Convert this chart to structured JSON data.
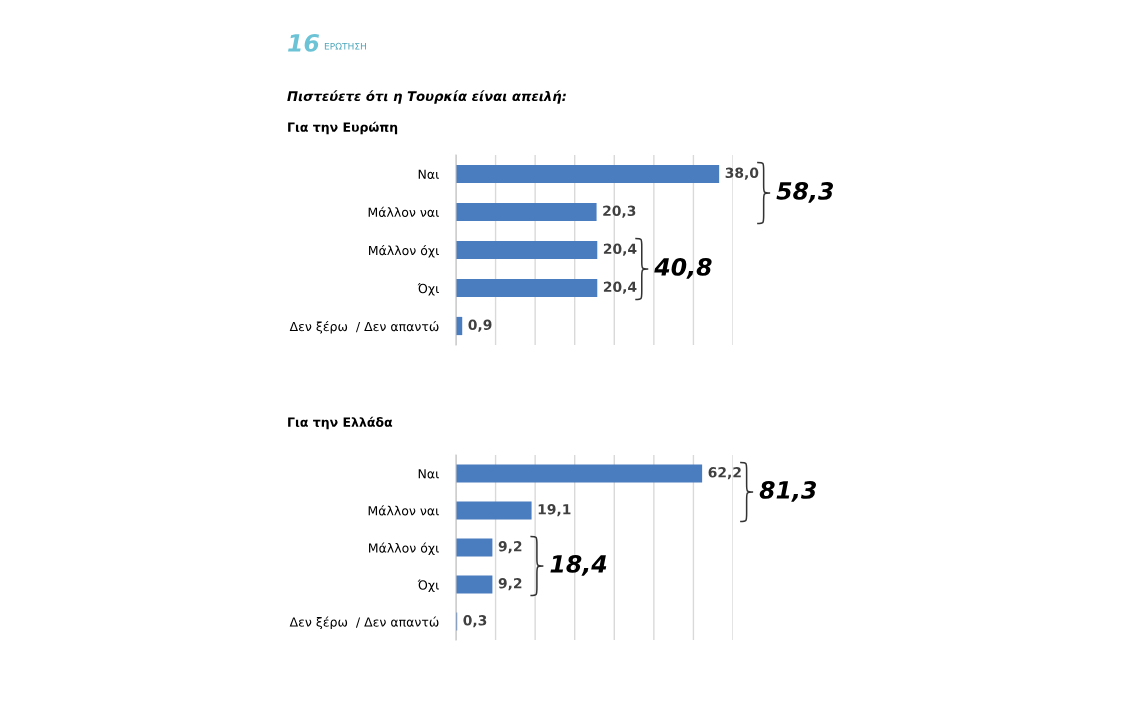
{
  "chart_data": [
    {
      "type": "bar",
      "orientation": "horizontal",
      "title": "Πιστεύετε ότι η Τουρκία είναι απειλή:",
      "subtitle": "Για την Ευρώπη",
      "categories": [
        "Ναι",
        "Μάλλον ναι",
        "Μάλλον όχι",
        "Όχι",
        "Δεν ξέρω  / Δεν απαντώ"
      ],
      "values": [
        38.0,
        20.3,
        20.4,
        20.4,
        0.9
      ],
      "value_labels": [
        "38,0",
        "20,3",
        "20,4",
        "20,4",
        "0,9"
      ],
      "color": "#4a7cc0",
      "xlim": [
        0,
        40
      ],
      "xticks": [
        {
          "value": 0,
          "label": null
        },
        {
          "value": 5.714,
          "label": null
        },
        {
          "value": 11.429,
          "label": null
        },
        {
          "value": 17.143,
          "label": null
        },
        {
          "value": 22.857,
          "label": null
        },
        {
          "value": 28.571,
          "label": null
        },
        {
          "value": 34.286,
          "label": null
        },
        {
          "value": 40,
          "label": null
        }
      ],
      "grid": "x",
      "tick_labels": "y",
      "annotations": [
        "16",
        "ΕΡΩΤΗΣΗ",
        "58,3",
        "40,8"
      ]
    },
    {
      "type": "bar",
      "orientation": "horizontal",
      "subtitle": "Για την Ελλάδα",
      "categories": [
        "Ναι",
        "Μάλλον ναι",
        "Μάλλον όχι",
        "Όχι",
        "Δεν ξέρω  / Δεν απαντώ"
      ],
      "values": [
        62.2,
        19.1,
        9.2,
        9.2,
        0.3
      ],
      "value_labels": [
        "62,2",
        "19,1",
        "9,2",
        "9,2",
        "0,3"
      ],
      "color": "#4a7cc0",
      "xlim": [
        0,
        70
      ],
      "xticks": [
        {
          "value": 0,
          "label": null
        },
        {
          "value": 10,
          "label": null
        },
        {
          "value": 20,
          "label": null
        },
        {
          "value": 30,
          "label": null
        },
        {
          "value": 40,
          "label": null
        },
        {
          "value": 50,
          "label": null
        },
        {
          "value": 60,
          "label": null
        },
        {
          "value": 70,
          "label": null
        }
      ],
      "grid": "x",
      "tick_labels": "y",
      "annotations": [
        "81,3",
        "18,4"
      ]
    }
  ]
}
